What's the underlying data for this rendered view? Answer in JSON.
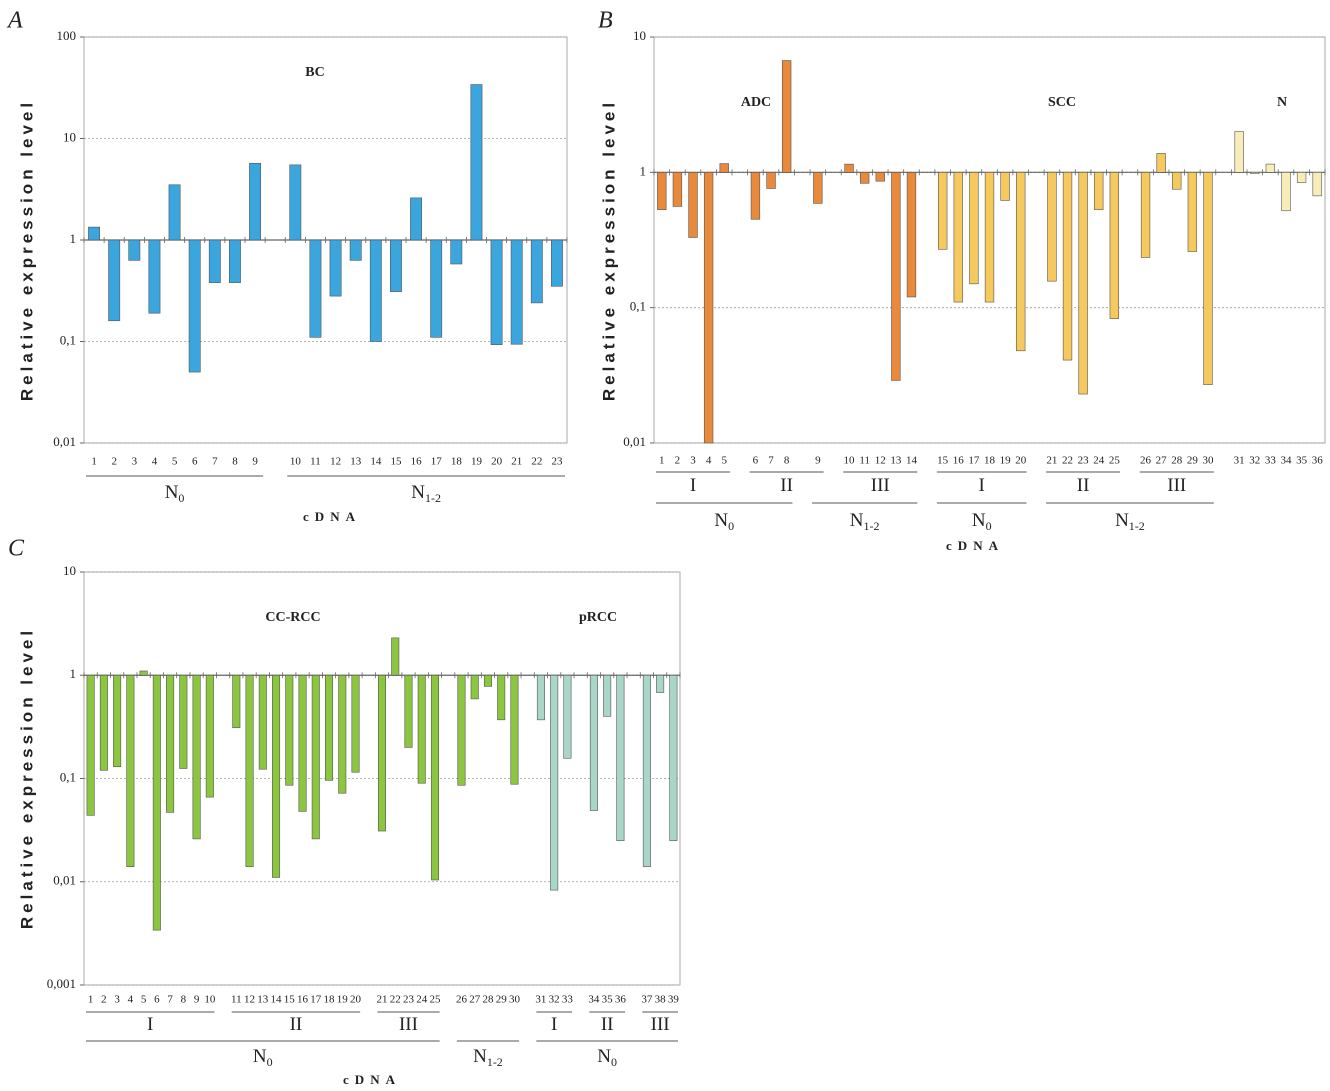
{
  "chart_data": [
    {
      "type": "bar",
      "panel": "A",
      "annotations": [
        "BC"
      ],
      "log_y": true,
      "grid": true,
      "ylabel": "Relative expression level",
      "xlabel": "cDNA",
      "color": "#3AA6DD",
      "ylim": [
        0.01,
        100
      ],
      "yticks": [
        100,
        10,
        1,
        {
          "value": 0.1,
          "label": "0,1"
        },
        {
          "value": 0.01,
          "label": "0,01"
        }
      ],
      "categories": [
        "1",
        "2",
        "3",
        "4",
        "5",
        "6",
        "7",
        "8",
        "9",
        null,
        "10",
        "11",
        "12",
        "13",
        "14",
        "15",
        "16",
        "17",
        "18",
        "19",
        "20",
        "21",
        "22",
        "23"
      ],
      "values": [
        1.34,
        0.16,
        0.63,
        0.19,
        3.5,
        0.05,
        0.38,
        0.38,
        5.7,
        null,
        5.5,
        0.11,
        0.28,
        0.63,
        0.1,
        0.31,
        2.6,
        0.11,
        0.58,
        34,
        0.093,
        0.094,
        0.24,
        0.35
      ],
      "groups": [
        [
          {
            "label": "N",
            "sub": "0",
            "from": 0,
            "to": 8
          },
          {
            "label": "N",
            "sub": "1-2",
            "from": 10,
            "to": 23
          }
        ]
      ]
    },
    {
      "type": "bar",
      "panel": "B",
      "annotations": [
        "ADC",
        "SCC",
        "N"
      ],
      "log_y": true,
      "grid": true,
      "ylabel": "Relative expression level",
      "xlabel": "cDNA",
      "ylim": [
        0.01,
        10
      ],
      "yticks": [
        10,
        1,
        {
          "value": 0.1,
          "label": "0,1"
        },
        {
          "value": 0.01,
          "label": "0,01"
        }
      ],
      "categories": [
        "1",
        "2",
        "3",
        "4",
        "5",
        null,
        "6",
        "7",
        "8",
        null,
        "9",
        null,
        "10",
        "11",
        "12",
        "13",
        "14",
        null,
        "15",
        "16",
        "17",
        "18",
        "19",
        "20",
        null,
        "21",
        "22",
        "23",
        "24",
        "25",
        null,
        "26",
        "27",
        "28",
        "29",
        "30",
        null,
        "31",
        "32",
        "33",
        "34",
        "35",
        "36"
      ],
      "values": [
        0.53,
        0.56,
        0.33,
        0.01,
        1.16,
        null,
        0.45,
        0.76,
        6.7,
        null,
        0.59,
        null,
        1.15,
        0.83,
        0.86,
        0.029,
        0.12,
        null,
        0.27,
        0.11,
        0.15,
        0.11,
        0.62,
        0.048,
        null,
        0.157,
        0.041,
        0.023,
        0.53,
        0.083,
        null,
        0.235,
        1.38,
        0.75,
        0.26,
        0.027,
        null,
        2.0,
        0.98,
        1.15,
        0.52,
        0.84,
        0.67
      ],
      "colors": [
        "#E8893C",
        "#E8893C",
        "#E8893C",
        "#E8893C",
        "#E8893C",
        null,
        "#E8893C",
        "#E8893C",
        "#E8893C",
        null,
        "#E8893C",
        null,
        "#E8893C",
        "#E8893C",
        "#E8893C",
        "#E8893C",
        "#E8893C",
        null,
        "#F6C95E",
        "#F6C95E",
        "#F6C95E",
        "#F6C95E",
        "#F6C95E",
        "#F6C95E",
        null,
        "#F6C95E",
        "#F6C95E",
        "#F6C95E",
        "#F6C95E",
        "#F6C95E",
        null,
        "#F6C95E",
        "#F6C95E",
        "#F6C95E",
        "#F6C95E",
        "#F6C95E",
        null,
        "#F8EDB8",
        "#F8EDB8",
        "#F8EDB8",
        "#F8EDB8",
        "#F8EDB8",
        "#F8EDB8"
      ],
      "groups": [
        [
          {
            "label": "I",
            "from": 0,
            "to": 4
          },
          {
            "label": "II",
            "from": 6,
            "to": 10
          },
          {
            "label": "III",
            "from": 12,
            "to": 16
          },
          {
            "label": "I",
            "from": 18,
            "to": 23
          },
          {
            "label": "II",
            "from": 25,
            "to": 29
          },
          {
            "label": "III",
            "from": 31,
            "to": 35
          }
        ],
        [
          {
            "label": "N",
            "sub": "0",
            "from": 0,
            "to": 8
          },
          {
            "label": "N",
            "sub": "1-2",
            "from": 10,
            "to": 16
          },
          {
            "label": "N",
            "sub": "0",
            "from": 18,
            "to": 23
          },
          {
            "label": "N",
            "sub": "1-2",
            "from": 25,
            "to": 35
          }
        ]
      ]
    },
    {
      "type": "bar",
      "panel": "C",
      "annotations": [
        "CC-RCC",
        "pRCC"
      ],
      "log_y": true,
      "grid": true,
      "ylabel": "Relative expression level",
      "xlabel": "cDNA",
      "ylim": [
        0.001,
        10
      ],
      "yticks": [
        10,
        1,
        {
          "value": 0.1,
          "label": "0,1"
        },
        {
          "value": 0.01,
          "label": "0,01"
        },
        {
          "value": 0.001,
          "label": "0,001"
        }
      ],
      "categories": [
        "1",
        "2",
        "3",
        "4",
        "5",
        "6",
        "7",
        "8",
        "9",
        "10",
        null,
        "11",
        "12",
        "13",
        "14",
        "15",
        "16",
        "17",
        "18",
        "19",
        "20",
        null,
        "21",
        "22",
        "23",
        "24",
        "25",
        null,
        "26",
        "27",
        "28",
        "29",
        "30",
        null,
        "31",
        "32",
        "33",
        null,
        "34",
        "35",
        "36",
        null,
        "37",
        "38",
        "39"
      ],
      "values": [
        0.044,
        0.12,
        0.13,
        0.014,
        1.1,
        0.0034,
        0.047,
        0.125,
        0.026,
        0.066,
        null,
        0.31,
        0.014,
        0.123,
        0.011,
        0.086,
        0.048,
        0.026,
        0.096,
        0.072,
        0.115,
        null,
        0.031,
        2.3,
        0.2,
        0.09,
        0.0104,
        null,
        0.086,
        0.59,
        0.78,
        0.37,
        0.088,
        null,
        0.37,
        0.0083,
        0.157,
        null,
        0.049,
        0.4,
        0.025,
        null,
        0.014,
        0.68,
        0.025
      ],
      "colors": [
        "#8CC540",
        "#8CC540",
        "#8CC540",
        "#8CC540",
        "#8CC540",
        "#8CC540",
        "#8CC540",
        "#8CC540",
        "#8CC540",
        "#8CC540",
        null,
        "#8CC540",
        "#8CC540",
        "#8CC540",
        "#8CC540",
        "#8CC540",
        "#8CC540",
        "#8CC540",
        "#8CC540",
        "#8CC540",
        "#8CC540",
        null,
        "#8CC540",
        "#8CC540",
        "#8CC540",
        "#8CC540",
        "#8CC540",
        null,
        "#8CC540",
        "#8CC540",
        "#8CC540",
        "#8CC540",
        "#8CC540",
        null,
        "#A9D6C9",
        "#A9D6C9",
        "#A9D6C9",
        null,
        "#A9D6C9",
        "#A9D6C9",
        "#A9D6C9",
        null,
        "#A9D6C9",
        "#A9D6C9",
        "#A9D6C9"
      ],
      "groups": [
        [
          {
            "label": "I",
            "from": 0,
            "to": 9
          },
          {
            "label": "II",
            "from": 11,
            "to": 20
          },
          {
            "label": "III",
            "from": 22,
            "to": 26
          },
          {
            "label": "I",
            "from": 34,
            "to": 36
          },
          {
            "label": "II",
            "from": 38,
            "to": 40
          },
          {
            "label": "III",
            "from": 42,
            "to": 44
          }
        ],
        [
          {
            "label": "N",
            "sub": "0",
            "from": 0,
            "to": 26
          },
          {
            "label": "N",
            "sub": "1-2",
            "from": 28,
            "to": 32
          },
          {
            "label": "N",
            "sub": "0",
            "from": 34,
            "to": 44
          }
        ]
      ]
    }
  ]
}
